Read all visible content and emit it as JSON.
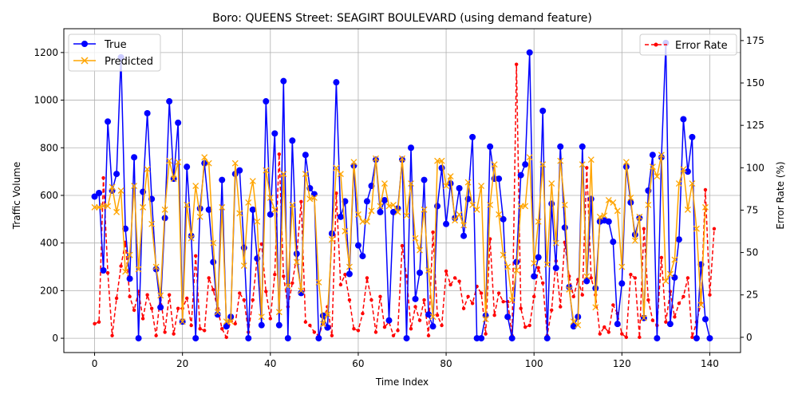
{
  "chart_data": {
    "type": "line",
    "title": "Boro: QUEENS Street: SEAGIRT BOULEVARD (using demand feature)",
    "xlabel": "Time Index",
    "ylabel": "Traffic Volume",
    "y2label": "Error Rate (%)",
    "xlim": [
      -7,
      147
    ],
    "ylim": [
      -60,
      1300
    ],
    "y2lim": [
      -9,
      182
    ],
    "xticks": [
      0,
      20,
      40,
      60,
      80,
      100,
      120,
      140
    ],
    "yticks": [
      0,
      200,
      400,
      600,
      800,
      1000,
      1200
    ],
    "y2ticks": [
      0,
      25,
      50,
      75,
      100,
      125,
      150,
      175
    ],
    "grid": true,
    "legend_left": {
      "placement": "top-left",
      "entries": [
        "True",
        "Predicted"
      ]
    },
    "legend_right": {
      "placement": "top-right",
      "entries": [
        "Error Rate"
      ]
    },
    "series": [
      {
        "name": "True",
        "axis": "left",
        "color": "#0000ff",
        "marker": "circle",
        "values": [
          595,
          610,
          285,
          910,
          620,
          690,
          1180,
          460,
          250,
          760,
          0,
          615,
          945,
          585,
          290,
          130,
          505,
          995,
          670,
          905,
          70,
          720,
          430,
          0,
          545,
          735,
          540,
          320,
          100,
          665,
          50,
          90,
          690,
          705,
          380,
          0,
          540,
          335,
          55,
          995,
          520,
          860,
          55,
          1080,
          0,
          830,
          355,
          190,
          770,
          630,
          605,
          0,
          95,
          45,
          440,
          1075,
          510,
          575,
          270,
          725,
          390,
          345,
          575,
          640,
          750,
          530,
          580,
          75,
          530,
          545,
          750,
          0,
          800,
          165,
          275,
          665,
          100,
          50,
          555,
          715,
          480,
          650,
          505,
          630,
          430,
          585,
          845,
          0,
          0,
          95,
          805,
          670,
          670,
          500,
          90,
          0,
          320,
          685,
          730,
          1200,
          260,
          340,
          955,
          0,
          565,
          295,
          805,
          465,
          215,
          50,
          90,
          805,
          240,
          585,
          210,
          490,
          495,
          490,
          405,
          60,
          230,
          720,
          570,
          435,
          505,
          85,
          620,
          770,
          0,
          760,
          1240,
          60,
          255,
          415,
          920,
          700,
          845,
          0,
          310,
          80,
          0
        ]
      },
      {
        "name": "Predicted",
        "axis": "left",
        "color": "#ffa500",
        "marker": "x",
        "values": [
          550,
          550,
          555,
          555,
          635,
          530,
          620,
          280,
          350,
          640,
          290,
          550,
          710,
          480,
          300,
          180,
          540,
          745,
          670,
          740,
          70,
          560,
          420,
          640,
          510,
          760,
          735,
          400,
          110,
          550,
          70,
          70,
          735,
          525,
          305,
          570,
          660,
          490,
          90,
          705,
          590,
          540,
          110,
          690,
          220,
          560,
          320,
          200,
          690,
          585,
          590,
          235,
          60,
          100,
          415,
          715,
          690,
          450,
          300,
          740,
          520,
          490,
          490,
          535,
          755,
          555,
          650,
          555,
          560,
          530,
          755,
          515,
          650,
          420,
          370,
          540,
          285,
          90,
          745,
          745,
          640,
          680,
          495,
          520,
          475,
          655,
          560,
          540,
          640,
          80,
          560,
          730,
          520,
          350,
          300,
          160,
          285,
          555,
          555,
          760,
          315,
          490,
          730,
          310,
          650,
          400,
          745,
          560,
          205,
          70,
          55,
          730,
          260,
          750,
          130,
          510,
          515,
          580,
          570,
          535,
          300,
          740,
          590,
          410,
          510,
          85,
          560,
          720,
          680,
          770,
          240,
          270,
          330,
          650,
          710,
          540,
          650,
          460,
          140,
          550
        ]
      },
      {
        "name": "Error Rate",
        "axis": "right",
        "color": "#ff0000",
        "marker": "dot",
        "values": [
          8,
          9,
          94,
          38,
          1,
          23,
          42,
          56,
          24,
          16,
          27,
          11,
          25,
          17,
          1,
          25,
          3,
          25,
          2,
          17,
          17,
          23,
          7,
          48,
          5,
          4,
          35,
          28,
          17,
          5,
          0,
          10,
          8,
          26,
          22,
          3,
          22,
          47,
          55,
          27,
          11,
          37,
          108,
          36,
          18,
          32,
          48,
          80,
          9,
          7,
          3,
          1,
          8,
          18,
          1,
          85,
          31,
          37,
          22,
          5,
          4,
          14,
          35,
          22,
          3,
          24,
          6,
          9,
          1,
          4,
          54,
          36,
          5,
          18,
          10,
          22,
          1,
          62,
          13,
          7,
          39,
          31,
          35,
          33,
          17,
          24,
          20,
          30,
          26,
          2,
          58,
          13,
          26,
          21,
          21,
          1,
          161,
          17,
          6,
          7,
          24,
          41,
          32,
          1,
          16,
          45,
          18,
          56,
          36,
          24,
          34,
          25,
          100,
          35,
          25,
          2,
          6,
          3,
          19,
          14,
          2,
          0,
          37,
          35,
          0,
          64,
          22,
          10,
          7,
          47,
          9,
          27,
          12,
          20,
          24,
          35,
          0,
          9,
          20,
          87,
          25,
          64
        ]
      }
    ]
  }
}
